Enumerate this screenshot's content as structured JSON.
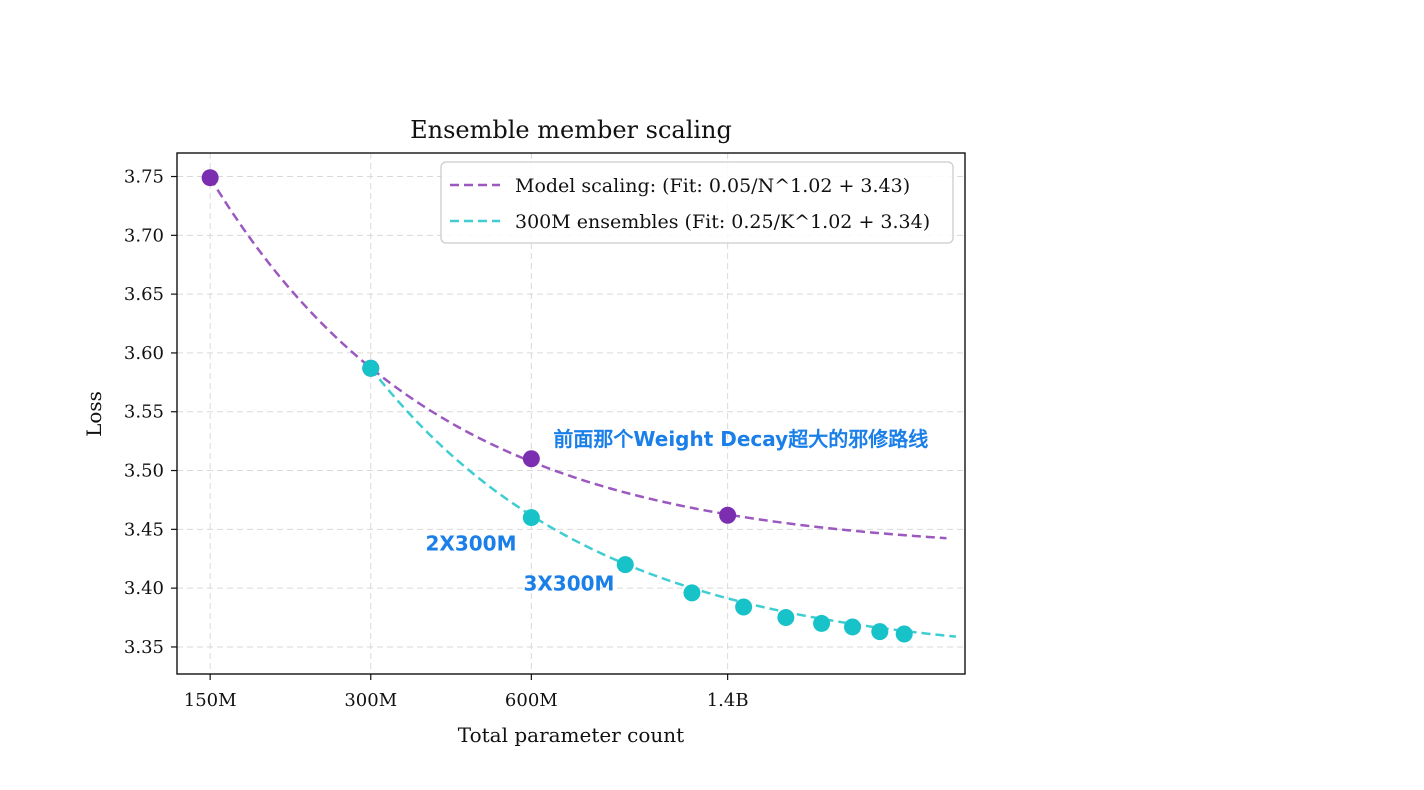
{
  "chart_data": {
    "type": "scatter",
    "title": "Ensemble member scaling",
    "xlabel": "Total parameter count",
    "ylabel": "Loss",
    "x_scale": "log",
    "xlim": [
      130,
      3900
    ],
    "ylim": [
      3.327,
      3.77
    ],
    "grid": true,
    "legend_position": "top-right",
    "x_ticks": [
      {
        "value": 150,
        "label": "150M"
      },
      {
        "value": 300,
        "label": "300M"
      },
      {
        "value": 600,
        "label": "600M"
      },
      {
        "value": 1400,
        "label": "1.4B"
      }
    ],
    "y_ticks": [
      3.35,
      3.4,
      3.45,
      3.5,
      3.55,
      3.6,
      3.65,
      3.7,
      3.75
    ],
    "y_tick_labels": [
      "3.35",
      "3.40",
      "3.45",
      "3.50",
      "3.55",
      "3.60",
      "3.65",
      "3.70",
      "3.75"
    ],
    "series": [
      {
        "name": "Model scaling: (Fit: 0.05/N^1.02 + 3.43)",
        "color": "#7b2fb0",
        "fit_color": "#9b59c0",
        "points": [
          {
            "x": 150,
            "y": 3.749
          },
          {
            "x": 300,
            "y": 3.587
          },
          {
            "x": 600,
            "y": 3.51
          },
          {
            "x": 1400,
            "y": 3.462
          }
        ],
        "fit": {
          "a": 0.05,
          "b": 1.02,
          "c": 3.43,
          "x_range": [
            150,
            3600
          ]
        }
      },
      {
        "name": "300M ensembles (Fit: 0.25/K^1.02 + 3.34)",
        "color": "#17c3c9",
        "fit_color": "#40cdd2",
        "points": [
          {
            "x": 300,
            "y": 3.587
          },
          {
            "x": 600,
            "y": 3.46
          },
          {
            "x": 900,
            "y": 3.42
          },
          {
            "x": 1200,
            "y": 3.396
          },
          {
            "x": 1500,
            "y": 3.384
          },
          {
            "x": 1800,
            "y": 3.375
          },
          {
            "x": 2100,
            "y": 3.37
          },
          {
            "x": 2400,
            "y": 3.367
          },
          {
            "x": 2700,
            "y": 3.363
          },
          {
            "x": 3000,
            "y": 3.361
          }
        ],
        "fit": {
          "a": 0.25,
          "b": 1.02,
          "c": 3.34,
          "x_range": [
            300,
            3750
          ]
        }
      }
    ],
    "annotations": [
      {
        "text": "前面那个Weight Decay超大的邪修路线",
        "x": 660,
        "y": 3.521
      },
      {
        "text": "2X300M",
        "x": 380,
        "y": 3.432
      },
      {
        "text": "3X300M",
        "x": 580,
        "y": 3.398
      }
    ]
  }
}
